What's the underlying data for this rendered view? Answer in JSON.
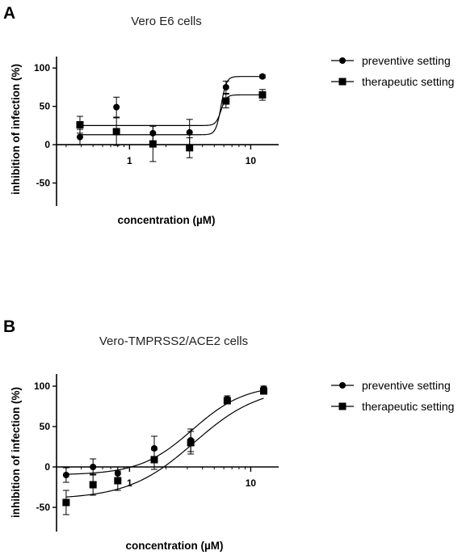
{
  "chart_data": [
    {
      "panel": "A",
      "type": "scatter",
      "title": "Vero E6 cells",
      "xlabel": "concentration (µM)",
      "ylabel": "inhibition of infection (%)",
      "xscale": "log",
      "xlim": [
        0.25,
        17
      ],
      "ylim": [
        -80,
        115
      ],
      "x_ticks": [
        {
          "value": 1,
          "label": "1"
        },
        {
          "value": 10,
          "label": "10"
        }
      ],
      "y_ticks": [
        {
          "value": -50,
          "label": "-50"
        },
        {
          "value": 0,
          "label": "0"
        },
        {
          "value": 50,
          "label": "50"
        },
        {
          "value": 100,
          "label": "100"
        }
      ],
      "legend_position": "right",
      "series": [
        {
          "name": "preventive setting",
          "marker": "circle",
          "x": [
            0.39,
            0.78,
            1.56,
            3.13,
            6.25,
            12.5
          ],
          "y": [
            10,
            49,
            15,
            16,
            75,
            89
          ],
          "err": [
            10,
            13,
            10,
            17,
            8,
            2
          ],
          "fit": {
            "bottom": 13,
            "top": 89,
            "ec50": 5.7,
            "hill": 20
          }
        },
        {
          "name": "therapeutic setting",
          "marker": "square",
          "x": [
            0.39,
            0.78,
            1.56,
            3.13,
            6.25,
            12.5
          ],
          "y": [
            26,
            17,
            1,
            -4,
            57,
            65
          ],
          "err": [
            11,
            18,
            23,
            13,
            9,
            7
          ],
          "fit": {
            "bottom": 25,
            "top": 65,
            "ec50": 5.7,
            "hill": 20
          }
        }
      ]
    },
    {
      "panel": "B",
      "type": "scatter",
      "title": "Vero-TMPRSS2/ACE2 cells",
      "xlabel": "concentration (µM)",
      "ylabel": "inhibition of infection (%)",
      "xscale": "log",
      "xlim": [
        0.25,
        17
      ],
      "ylim": [
        -80,
        115
      ],
      "x_ticks": [
        {
          "value": 1,
          "label": "1"
        },
        {
          "value": 10,
          "label": "10"
        }
      ],
      "y_ticks": [
        {
          "value": -50,
          "label": "-50"
        },
        {
          "value": 0,
          "label": "0"
        },
        {
          "value": 50,
          "label": "50"
        },
        {
          "value": 100,
          "label": "100"
        }
      ],
      "legend_position": "right",
      "series": [
        {
          "name": "preventive setting",
          "marker": "circle",
          "x": [
            0.3,
            0.5,
            0.8,
            1.6,
            3.2,
            6.4,
            12.8
          ],
          "y": [
            -10,
            0,
            -8,
            23,
            33,
            84,
            97
          ],
          "err": [
            9,
            10,
            8,
            15,
            14,
            4,
            3
          ],
          "fit": {
            "bottom": -10,
            "top": 102,
            "ec50": 3.3,
            "hill": 2.0
          }
        },
        {
          "name": "therapeutic setting",
          "marker": "square",
          "x": [
            0.3,
            0.5,
            0.8,
            1.6,
            3.2,
            6.4,
            12.8
          ],
          "y": [
            -44,
            -22,
            -17,
            9,
            30,
            82,
            94
          ],
          "err": [
            15,
            13,
            12,
            12,
            14,
            4,
            3
          ],
          "fit": {
            "bottom": -40,
            "top": 100,
            "ec50": 3.4,
            "hill": 1.6
          }
        }
      ]
    }
  ]
}
